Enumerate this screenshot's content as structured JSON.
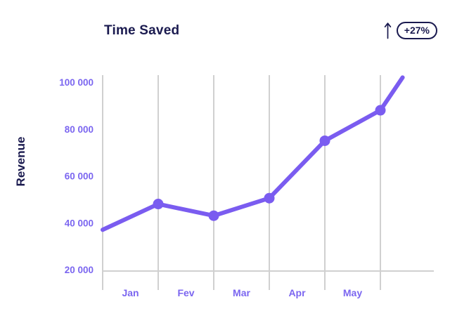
{
  "header": {
    "title": "Time Saved",
    "trend": {
      "arrow_icon": "up-arrow",
      "badge_label": "+27%"
    }
  },
  "chart_data": {
    "type": "line",
    "title": "Time Saved",
    "ylabel": "Revenue",
    "xlabel": "",
    "ylim": [
      20000,
      103000
    ],
    "grid": "vertical-gridlines-only",
    "legend_position": "none",
    "trend_badge": "+27%",
    "y_ticks": [
      {
        "value": 100000,
        "label": "100 000"
      },
      {
        "value": 80000,
        "label": "80 000"
      },
      {
        "value": 60000,
        "label": "60 000"
      },
      {
        "value": 40000,
        "label": "40 000"
      },
      {
        "value": 20000,
        "label": "20 000"
      }
    ],
    "x_tick_labels": [
      "Jan",
      "Fev",
      "Mar",
      "Apr",
      "May"
    ],
    "series": [
      {
        "name": "Revenue",
        "points": [
          {
            "x_grid": 0.0,
            "value": 37000,
            "marker": false
          },
          {
            "x_grid": 1.0,
            "value": 48000,
            "marker": true
          },
          {
            "x_grid": 2.0,
            "value": 43000,
            "marker": true
          },
          {
            "x_grid": 3.0,
            "value": 50500,
            "marker": true
          },
          {
            "x_grid": 4.0,
            "value": 75000,
            "marker": true
          },
          {
            "x_grid": 5.0,
            "value": 88000,
            "marker": true
          },
          {
            "x_grid": 5.4,
            "value": 102000,
            "marker": false
          }
        ]
      }
    ]
  },
  "colors": {
    "accent_purple": "#7A5CF0",
    "tick_label_purple": "#7B66F0",
    "navy": "#1A1A4F",
    "grid_gray": "#D0D0D0",
    "background": "#FFFFFF"
  }
}
